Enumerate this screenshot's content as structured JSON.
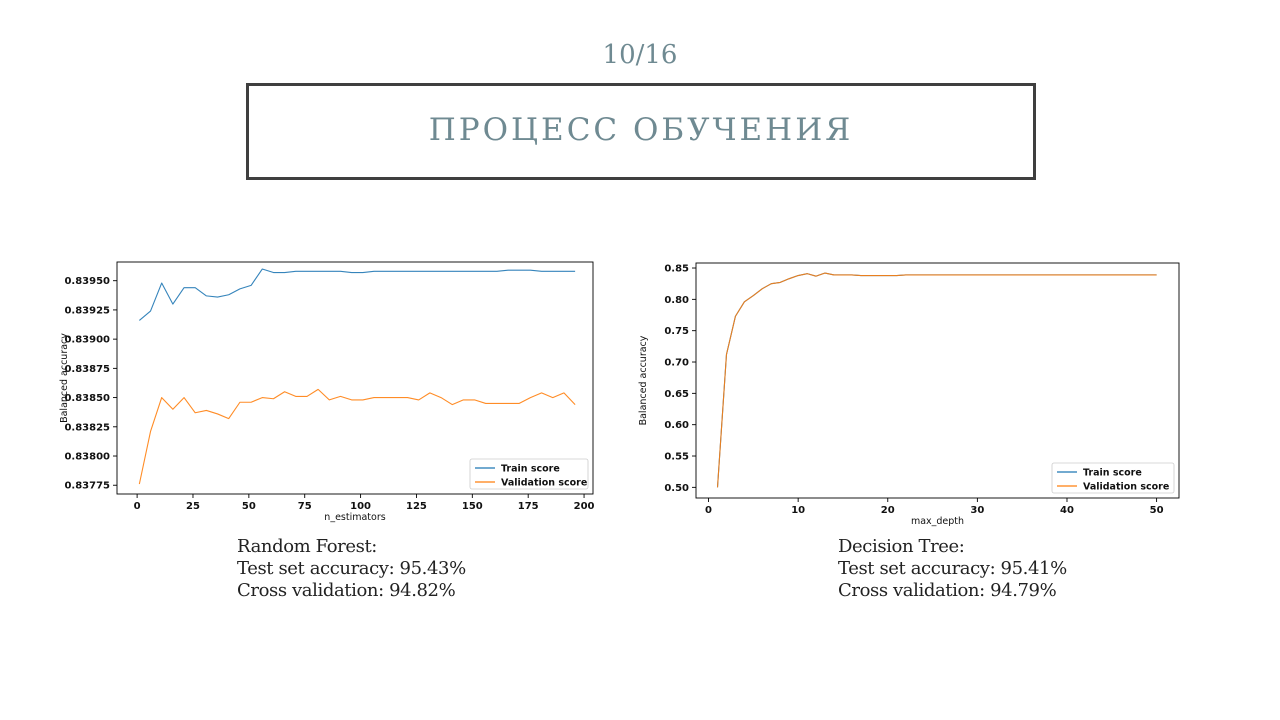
{
  "slide": {
    "page_number": "10/16",
    "title": "ПРОЦЕСС ОБУЧЕНИЯ"
  },
  "captions": [
    {
      "model": "Random Forest:",
      "test": "Test set accuracy: 95.43%",
      "cv": "Cross validation: 94.82%"
    },
    {
      "model": "Decision Tree:",
      "test": "Test set accuracy: 95.41%",
      "cv": "Cross validation: 94.79%"
    }
  ],
  "colors": {
    "train": "#1f77b4",
    "validation": "#ff7f0e",
    "title": "#6f8a92"
  },
  "chart_data": [
    {
      "type": "line",
      "xlabel": "n_estimators",
      "ylabel": "Balanced accuracy",
      "xlim": [
        -9,
        204
      ],
      "ylim": [
        0.837675,
        0.83966
      ],
      "xticks": [
        0,
        25,
        50,
        75,
        100,
        125,
        150,
        175,
        200
      ],
      "yticks": [
        0.83775,
        0.838,
        0.83825,
        0.8385,
        0.83875,
        0.839,
        0.83925,
        0.8395
      ],
      "ytick_labels": [
        "0.83775",
        "0.83800",
        "0.83825",
        "0.83850",
        "0.83875",
        "0.83900",
        "0.83925",
        "0.83950"
      ],
      "legend": "lower-right",
      "x": [
        1,
        6,
        11,
        16,
        21,
        26,
        31,
        36,
        41,
        46,
        51,
        56,
        61,
        66,
        71,
        76,
        81,
        86,
        91,
        96,
        101,
        106,
        111,
        116,
        121,
        126,
        131,
        136,
        141,
        146,
        151,
        156,
        161,
        166,
        171,
        176,
        181,
        186,
        191,
        196
      ],
      "series": [
        {
          "name": "Train score",
          "color": "#1f77b4",
          "values": [
            0.83916,
            0.83924,
            0.83948,
            0.8393,
            0.83944,
            0.83944,
            0.83937,
            0.83936,
            0.83938,
            0.83943,
            0.83946,
            0.8396,
            0.83957,
            0.83957,
            0.83958,
            0.83958,
            0.83958,
            0.83958,
            0.83958,
            0.83957,
            0.83957,
            0.83958,
            0.83958,
            0.83958,
            0.83958,
            0.83958,
            0.83958,
            0.83958,
            0.83958,
            0.83958,
            0.83958,
            0.83958,
            0.83958,
            0.83959,
            0.83959,
            0.83959,
            0.83958,
            0.83958,
            0.83958,
            0.83958
          ]
        },
        {
          "name": "Validation score",
          "color": "#ff7f0e",
          "values": [
            0.83776,
            0.83821,
            0.8385,
            0.8384,
            0.8385,
            0.83837,
            0.83839,
            0.83836,
            0.83832,
            0.83846,
            0.83846,
            0.8385,
            0.83849,
            0.83855,
            0.83851,
            0.83851,
            0.83857,
            0.83848,
            0.83851,
            0.83848,
            0.83848,
            0.8385,
            0.8385,
            0.8385,
            0.8385,
            0.83848,
            0.83854,
            0.8385,
            0.83844,
            0.83848,
            0.83848,
            0.83845,
            0.83845,
            0.83845,
            0.83845,
            0.8385,
            0.83854,
            0.8385,
            0.83854,
            0.83844
          ]
        }
      ]
    },
    {
      "type": "line",
      "xlabel": "max_depth",
      "ylabel": "Balanced accuracy",
      "xlim": [
        -1.4,
        52.5
      ],
      "ylim": [
        0.483,
        0.858
      ],
      "xticks": [
        0,
        10,
        20,
        30,
        40,
        50
      ],
      "yticks": [
        0.5,
        0.55,
        0.6,
        0.65,
        0.7,
        0.75,
        0.8,
        0.85
      ],
      "ytick_labels": [
        "0.50",
        "0.55",
        "0.60",
        "0.65",
        "0.70",
        "0.75",
        "0.80",
        "0.85"
      ],
      "legend": "lower-right",
      "x": [
        1,
        2,
        3,
        4,
        5,
        6,
        7,
        8,
        9,
        10,
        11,
        12,
        13,
        14,
        15,
        16,
        17,
        18,
        19,
        20,
        21,
        22,
        23,
        24,
        25,
        26,
        27,
        28,
        29,
        30,
        31,
        32,
        33,
        34,
        35,
        36,
        37,
        38,
        39,
        40,
        41,
        42,
        43,
        44,
        45,
        46,
        47,
        48,
        49,
        50
      ],
      "series": [
        {
          "name": "Train score",
          "color": "#1f77b4",
          "values": [
            0.5,
            0.712,
            0.773,
            0.796,
            0.806,
            0.817,
            0.825,
            0.827,
            0.833,
            0.838,
            0.841,
            0.837,
            0.842,
            0.839,
            0.839,
            0.839,
            0.838,
            0.838,
            0.838,
            0.838,
            0.838,
            0.839,
            0.839,
            0.839,
            0.839,
            0.839,
            0.839,
            0.839,
            0.839,
            0.839,
            0.839,
            0.839,
            0.839,
            0.839,
            0.839,
            0.839,
            0.839,
            0.839,
            0.839,
            0.839,
            0.839,
            0.839,
            0.839,
            0.839,
            0.839,
            0.839,
            0.839,
            0.839,
            0.839,
            0.839
          ]
        },
        {
          "name": "Validation score",
          "color": "#ff7f0e",
          "values": [
            0.5,
            0.712,
            0.773,
            0.796,
            0.806,
            0.817,
            0.825,
            0.827,
            0.833,
            0.838,
            0.841,
            0.837,
            0.842,
            0.839,
            0.839,
            0.839,
            0.838,
            0.838,
            0.838,
            0.838,
            0.838,
            0.839,
            0.839,
            0.839,
            0.839,
            0.839,
            0.839,
            0.839,
            0.839,
            0.839,
            0.839,
            0.839,
            0.839,
            0.839,
            0.839,
            0.839,
            0.839,
            0.839,
            0.839,
            0.839,
            0.839,
            0.839,
            0.839,
            0.839,
            0.839,
            0.839,
            0.839,
            0.839,
            0.839,
            0.839
          ]
        }
      ]
    }
  ]
}
